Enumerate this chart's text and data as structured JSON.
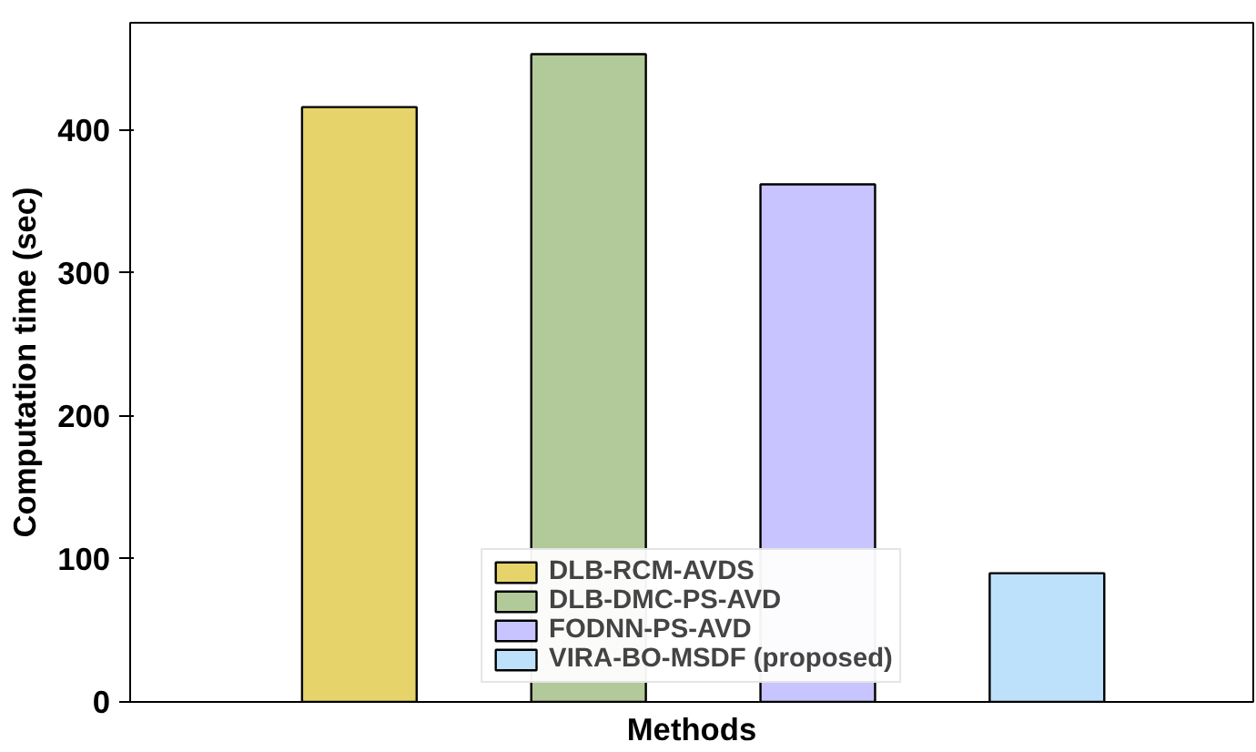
{
  "chart_data": {
    "type": "bar",
    "xlabel": "Methods",
    "ylabel": "Computation time (sec)",
    "categories": [
      null,
      null,
      null,
      null
    ],
    "stacked": true,
    "series": [
      {
        "name": "DLB-RCM-AVDS",
        "color": "#e6d46a",
        "values": [
          416,
          null,
          null,
          null
        ]
      },
      {
        "name": "DLB-DMC-PS-AVD",
        "color": "#b2c99a",
        "values": [
          null,
          453,
          null,
          null
        ]
      },
      {
        "name": "FODNN-PS-AVD",
        "color": "#c8c4ff",
        "values": [
          null,
          null,
          362,
          null
        ]
      },
      {
        "name": "VIRA-BO-MSDF (proposed)",
        "color": "#bde0fb",
        "values": [
          null,
          null,
          null,
          90
        ]
      }
    ],
    "ylim": [
      0,
      475
    ],
    "yticks": [
      0,
      100,
      200,
      300,
      400
    ],
    "grid": false,
    "legend": "bottom"
  }
}
